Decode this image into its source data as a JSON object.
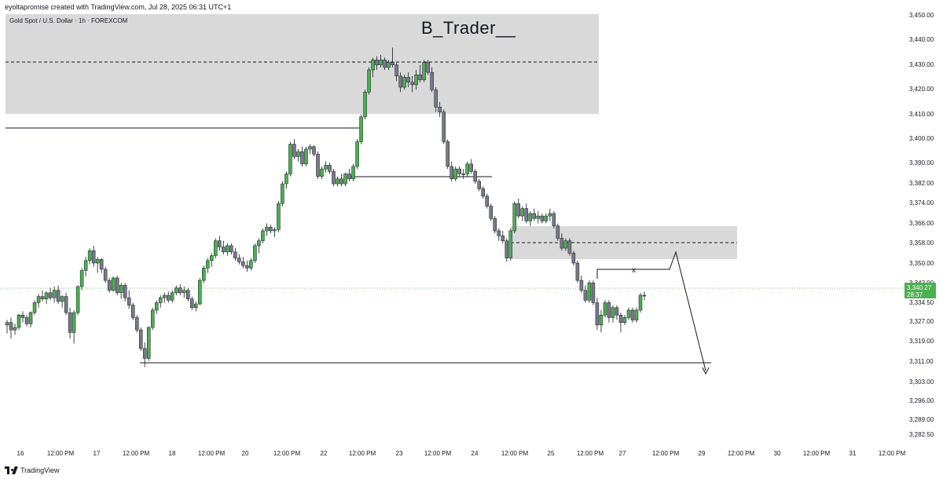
{
  "header": {
    "created_text": "eyoltapromise created with TradingView.com, Jul 28, 2025 06:31 UTC+1"
  },
  "symbol": {
    "label": "Gold Spot / U.S. Dollar · 1h · FOREXCOM"
  },
  "watermark": "B_Trader__",
  "price_axis": {
    "ticks": [
      "3,450.00",
      "3,440.00",
      "3,430.00",
      "3,420.00",
      "3,410.00",
      "3,400.00",
      "3,390.00",
      "3,382.00",
      "3,374.00",
      "3,366.00",
      "3,358.00",
      "3,350.00",
      "3,342.00",
      "3,334.50",
      "3,327.00",
      "3,319.00",
      "3,311.00",
      "3,303.00",
      "3,296.00",
      "3,289.00",
      "3,282.50"
    ],
    "current_price": "3,340.27",
    "countdown": "28:37"
  },
  "time_axis": {
    "labels": [
      "16",
      "12:00 PM",
      "17",
      "12:00 PM",
      "18",
      "12:00 PM",
      "20",
      "12:00 PM",
      "22",
      "12:00 PM",
      "23",
      "12:00 PM",
      "24",
      "12:00 PM",
      "25",
      "12:00 PM",
      "27",
      "12:00 PM",
      "29",
      "12:00 PM",
      "30",
      "12:00 PM",
      "31",
      "12:00 PM"
    ]
  },
  "annotations": {
    "x_marker": "x"
  },
  "colors": {
    "bull": "#4caf50",
    "bear": "#787b86",
    "zone": "#d9d9d9",
    "price_badge": "#4caf50",
    "line": "#131722"
  },
  "footer": {
    "brand": "TradingView",
    "logo_icon": "tradingview-logo-icon"
  },
  "chart_data": {
    "type": "candlestick",
    "title": "Gold Spot / U.S. Dollar · 1h · FOREXCOM",
    "ylim": [
      3278,
      3453
    ],
    "candles": [
      [
        3327.5,
        3329.5,
        3324,
        3328.5
      ],
      [
        3328.5,
        3330.5,
        3322,
        3325.5
      ],
      [
        3325.5,
        3328,
        3323.5,
        3326.5
      ],
      [
        3326.5,
        3332,
        3325.5,
        3331.5
      ],
      [
        3331.5,
        3333,
        3328.5,
        3330.5
      ],
      [
        3330.5,
        3331.5,
        3327,
        3328
      ],
      [
        3328,
        3333,
        3326.5,
        3332.5
      ],
      [
        3332.5,
        3337.5,
        3331.5,
        3336.5
      ],
      [
        3336.5,
        3340,
        3334.5,
        3339
      ],
      [
        3339,
        3341.5,
        3337,
        3338
      ],
      [
        3338,
        3341,
        3336,
        3340.5
      ],
      [
        3340.5,
        3342.5,
        3337.5,
        3338.5
      ],
      [
        3338.5,
        3343,
        3336.5,
        3341.5
      ],
      [
        3341.5,
        3343.5,
        3336,
        3337
      ],
      [
        3337,
        3339.5,
        3334.5,
        3339
      ],
      [
        3339,
        3340.5,
        3331.5,
        3332.5
      ],
      [
        3332.5,
        3334.5,
        3322,
        3324.5
      ],
      [
        3324.5,
        3333.5,
        3320,
        3332.5
      ],
      [
        3332.5,
        3343.5,
        3331.5,
        3343
      ],
      [
        3343,
        3350.5,
        3341.5,
        3349.5
      ],
      [
        3349.5,
        3355,
        3347,
        3353.5
      ],
      [
        3353.5,
        3358.5,
        3352,
        3357.5
      ],
      [
        3357.5,
        3359.5,
        3351,
        3352.5
      ],
      [
        3352.5,
        3355,
        3348.5,
        3354
      ],
      [
        3354,
        3354.5,
        3348.5,
        3350
      ],
      [
        3350,
        3351,
        3344.5,
        3345.5
      ],
      [
        3345.5,
        3346.5,
        3340.5,
        3341.5
      ],
      [
        3341.5,
        3347,
        3341,
        3346.5
      ],
      [
        3346.5,
        3347.5,
        3339.5,
        3340.5
      ],
      [
        3340.5,
        3344.5,
        3338,
        3343.5
      ],
      [
        3343.5,
        3344.5,
        3337,
        3338.5
      ],
      [
        3338.5,
        3341.5,
        3334,
        3335.5
      ],
      [
        3335.5,
        3336.5,
        3329.5,
        3330.5
      ],
      [
        3330.5,
        3331.5,
        3324.5,
        3325.5
      ],
      [
        3325.5,
        3326.5,
        3317,
        3318
      ],
      [
        3318,
        3320.5,
        3310.5,
        3314
      ],
      [
        3314,
        3327,
        3313,
        3326.5
      ],
      [
        3326.5,
        3334.5,
        3325.5,
        3333.5
      ],
      [
        3333.5,
        3337.5,
        3332,
        3336.5
      ],
      [
        3336.5,
        3339.5,
        3334.5,
        3338.5
      ],
      [
        3338.5,
        3340.5,
        3336.5,
        3339.5
      ],
      [
        3339.5,
        3341,
        3336.5,
        3337.5
      ],
      [
        3337.5,
        3341.5,
        3336.5,
        3340.5
      ],
      [
        3340.5,
        3343.5,
        3339.5,
        3342.5
      ],
      [
        3342.5,
        3344,
        3339.5,
        3340.5
      ],
      [
        3340.5,
        3343,
        3338.5,
        3341.5
      ],
      [
        3341.5,
        3342.5,
        3337,
        3338
      ],
      [
        3338,
        3339,
        3333.5,
        3334.5
      ],
      [
        3334.5,
        3337,
        3333,
        3336
      ],
      [
        3336,
        3346.5,
        3335.5,
        3345.5
      ],
      [
        3345.5,
        3351.5,
        3344.5,
        3350.5
      ],
      [
        3350.5,
        3354.5,
        3348.5,
        3353.5
      ],
      [
        3353.5,
        3356.5,
        3351,
        3355.5
      ],
      [
        3355.5,
        3362.5,
        3354.5,
        3361.5
      ],
      [
        3361.5,
        3363.5,
        3357.5,
        3359
      ],
      [
        3359,
        3361.5,
        3356,
        3357
      ],
      [
        3357,
        3360.5,
        3355.5,
        3359.5
      ],
      [
        3359.5,
        3360.5,
        3356,
        3357
      ],
      [
        3357,
        3358.5,
        3353.5,
        3354.5
      ],
      [
        3354.5,
        3356,
        3352,
        3353
      ],
      [
        3353,
        3355,
        3350.5,
        3351.5
      ],
      [
        3351.5,
        3353.5,
        3349,
        3350.5
      ],
      [
        3350.5,
        3354.5,
        3349.5,
        3353.5
      ],
      [
        3353.5,
        3360.5,
        3352.5,
        3359.5
      ],
      [
        3359.5,
        3362.5,
        3356.5,
        3361.5
      ],
      [
        3361.5,
        3366.5,
        3360.5,
        3365.5
      ],
      [
        3365.5,
        3368.5,
        3363.5,
        3367
      ],
      [
        3367,
        3368,
        3364.5,
        3365.5
      ],
      [
        3365.5,
        3367,
        3363,
        3366
      ],
      [
        3366,
        3377.5,
        3365,
        3376.5
      ],
      [
        3376.5,
        3385.5,
        3375.5,
        3384.5
      ],
      [
        3384.5,
        3389.5,
        3382.5,
        3388.5
      ],
      [
        3388.5,
        3401.5,
        3387.5,
        3400.5
      ],
      [
        3400.5,
        3402.5,
        3394.5,
        3395.5
      ],
      [
        3395.5,
        3398.5,
        3393.5,
        3397.5
      ],
      [
        3397.5,
        3399.5,
        3391.5,
        3392.5
      ],
      [
        3392.5,
        3399.5,
        3391.5,
        3398.5
      ],
      [
        3398.5,
        3400.5,
        3396.5,
        3399.5
      ],
      [
        3399.5,
        3400,
        3395.5,
        3396.5
      ],
      [
        3396.5,
        3397.5,
        3386.5,
        3387.5
      ],
      [
        3387.5,
        3391.5,
        3386.5,
        3390.5
      ],
      [
        3390.5,
        3393.5,
        3389,
        3392
      ],
      [
        3392,
        3393,
        3388.5,
        3389.5
      ],
      [
        3389.5,
        3390.5,
        3383.5,
        3384.5
      ],
      [
        3384.5,
        3387.5,
        3383.5,
        3386.5
      ],
      [
        3386.5,
        3388.5,
        3383.5,
        3384.5
      ],
      [
        3384.5,
        3389,
        3383.5,
        3388.5
      ],
      [
        3388.5,
        3390.5,
        3385.5,
        3386.5
      ],
      [
        3386.5,
        3392.5,
        3385.5,
        3391.5
      ],
      [
        3391.5,
        3402.5,
        3390.5,
        3401.5
      ],
      [
        3401.5,
        3412.5,
        3400.5,
        3411.5
      ],
      [
        3411.5,
        3422.5,
        3410.5,
        3421.5
      ],
      [
        3421.5,
        3431.5,
        3420.5,
        3430.5
      ],
      [
        3430.5,
        3435.5,
        3427.5,
        3434.5
      ],
      [
        3434.5,
        3436,
        3430.5,
        3432.5
      ],
      [
        3432.5,
        3436.5,
        3431.5,
        3434.5
      ],
      [
        3434.5,
        3435.5,
        3430.5,
        3431.5
      ],
      [
        3431.5,
        3434.5,
        3430.5,
        3433.5
      ],
      [
        3433.5,
        3439.5,
        3431.5,
        3432.5
      ],
      [
        3432.5,
        3433.5,
        3426,
        3428
      ],
      [
        3428,
        3429.5,
        3421.5,
        3423.5
      ],
      [
        3423.5,
        3428.5,
        3422.5,
        3427.5
      ],
      [
        3427.5,
        3429.5,
        3423.5,
        3425.5
      ],
      [
        3425.5,
        3428,
        3421.5,
        3424.5
      ],
      [
        3424.5,
        3430.5,
        3422.5,
        3428.5
      ],
      [
        3428.5,
        3432.5,
        3425.5,
        3426.5
      ],
      [
        3426.5,
        3434.5,
        3425.5,
        3433.5
      ],
      [
        3433.5,
        3434.5,
        3428.5,
        3429.5
      ],
      [
        3429.5,
        3431.5,
        3421.5,
        3422.5
      ],
      [
        3422.5,
        3423.5,
        3413.5,
        3415.5
      ],
      [
        3415.5,
        3417.5,
        3411.5,
        3413.5
      ],
      [
        3413.5,
        3414.5,
        3400.5,
        3401.5
      ],
      [
        3401.5,
        3402.5,
        3390.5,
        3391.5
      ],
      [
        3391.5,
        3393.5,
        3385.5,
        3386.5
      ],
      [
        3386.5,
        3391.5,
        3385.5,
        3390.5
      ],
      [
        3390.5,
        3391.5,
        3387.5,
        3388.5
      ],
      [
        3388.5,
        3390.5,
        3386.5,
        3388.5
      ],
      [
        3388.5,
        3393.5,
        3387.5,
        3392.5
      ],
      [
        3392.5,
        3394.5,
        3388.5,
        3389.5
      ],
      [
        3389.5,
        3390.5,
        3384.5,
        3385.5
      ],
      [
        3385.5,
        3386.5,
        3381.5,
        3382.5
      ],
      [
        3382.5,
        3383.5,
        3378.5,
        3379.5
      ],
      [
        3379.5,
        3380.5,
        3374.5,
        3375.5
      ],
      [
        3375.5,
        3376.5,
        3369.5,
        3370.5
      ],
      [
        3370.5,
        3371.5,
        3364.5,
        3365.5
      ],
      [
        3365.5,
        3366.5,
        3361.5,
        3363.5
      ],
      [
        3363.5,
        3365.5,
        3360.5,
        3361.5
      ],
      [
        3361.5,
        3362.5,
        3353,
        3354.5
      ],
      [
        3354.5,
        3366.5,
        3353.5,
        3365.5
      ],
      [
        3365.5,
        3377.5,
        3364.5,
        3376.5
      ],
      [
        3376.5,
        3378.5,
        3370.5,
        3371.5
      ],
      [
        3371.5,
        3375.5,
        3369.5,
        3374.5
      ],
      [
        3374.5,
        3376.5,
        3368.5,
        3369.5
      ],
      [
        3369.5,
        3373.5,
        3367.5,
        3372.5
      ],
      [
        3372.5,
        3374.5,
        3369.5,
        3370.5
      ],
      [
        3370.5,
        3373.5,
        3368.5,
        3371.5
      ],
      [
        3371.5,
        3372.5,
        3368.5,
        3369.5
      ],
      [
        3369.5,
        3372.5,
        3368.5,
        3371.5
      ],
      [
        3371.5,
        3374.5,
        3369.5,
        3372.5
      ],
      [
        3372.5,
        3373.5,
        3366.5,
        3367.5
      ],
      [
        3367.5,
        3368.5,
        3361.5,
        3362.5
      ],
      [
        3362.5,
        3364.5,
        3357.5,
        3358.5
      ],
      [
        3358.5,
        3362.5,
        3357.5,
        3361.5
      ],
      [
        3361.5,
        3362.5,
        3355.5,
        3356.5
      ],
      [
        3356.5,
        3357.5,
        3351.5,
        3352.5
      ],
      [
        3352.5,
        3353.5,
        3344.5,
        3345.5
      ],
      [
        3345.5,
        3347.5,
        3340.5,
        3341.5
      ],
      [
        3341.5,
        3343.5,
        3336.5,
        3337.5
      ],
      [
        3337.5,
        3345.5,
        3336.5,
        3344.5
      ],
      [
        3344.5,
        3345.5,
        3335.5,
        3336.5
      ],
      [
        3336.5,
        3338.5,
        3325.5,
        3327.5
      ],
      [
        3327.5,
        3333.5,
        3324.5,
        3331.5
      ],
      [
        3331.5,
        3337.5,
        3330.5,
        3336.5
      ],
      [
        3336.5,
        3337.5,
        3328.5,
        3330.5
      ],
      [
        3330.5,
        3335.5,
        3328.5,
        3334.5
      ],
      [
        3334.5,
        3335.5,
        3329.5,
        3331.5
      ],
      [
        3331.5,
        3332.5,
        3324.5,
        3328.5
      ],
      [
        3328.5,
        3331.5,
        3327.5,
        3330.5
      ],
      [
        3330.5,
        3334.5,
        3329.5,
        3333.5
      ],
      [
        3333.5,
        3334.5,
        3328.5,
        3329.5
      ],
      [
        3329.5,
        3334.5,
        3328.5,
        3333.5
      ],
      [
        3333.5,
        3340.5,
        3332.5,
        3339.5
      ],
      [
        3339.5,
        3341,
        3337.5,
        3339.5
      ]
    ]
  }
}
